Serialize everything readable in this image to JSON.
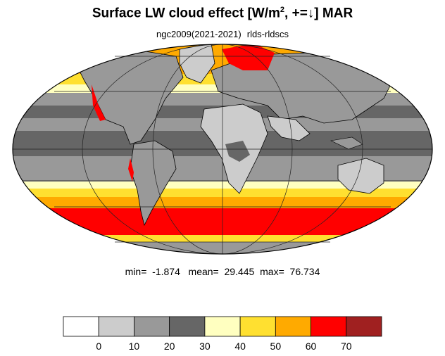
{
  "title": {
    "main": "Surface LW cloud effect [W/m",
    "sup": "2",
    "tail": ", +=↓]  MAR"
  },
  "subtitle": {
    "run": "ngc2009(2021-2021)",
    "variable": "rlds-rldscs"
  },
  "stats": {
    "min_label": "min=",
    "min": "-1.874",
    "mean_label": "mean=",
    "mean": "29.445",
    "max_label": "max=",
    "max": "76.734"
  },
  "colorbar": {
    "colors": [
      "#ffffff",
      "#cccccc",
      "#999999",
      "#666666",
      "#ffffc0",
      "#ffe030",
      "#ffaa00",
      "#ff0000",
      "#a02020"
    ],
    "tick_labels": [
      "0",
      "10",
      "20",
      "30",
      "40",
      "50",
      "60",
      "70"
    ]
  },
  "map": {
    "projection": "mollweide",
    "ocean_base_color": "#666666",
    "land_base_color": "#999999",
    "coastline_color": "#000000",
    "graticule_color": "#222222"
  }
}
